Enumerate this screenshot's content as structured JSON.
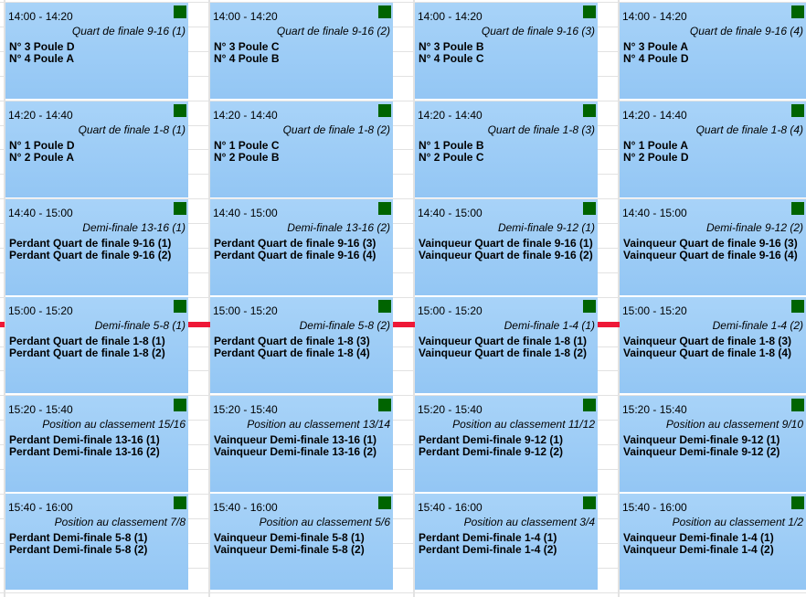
{
  "now_indicator_color": "#ee1837",
  "status_color": "#006400",
  "rows": [
    {
      "time": "14:00 - 14:20",
      "matches": [
        {
          "title": "Quart de finale 9-16 (1)",
          "teams": [
            "N° 3 Poule D",
            "N° 4 Poule A"
          ]
        },
        {
          "title": "Quart de finale 9-16 (2)",
          "teams": [
            "N° 3 Poule C",
            "N° 4 Poule B"
          ]
        },
        {
          "title": "Quart de finale 9-16 (3)",
          "teams": [
            "N° 3 Poule B",
            "N° 4 Poule C"
          ]
        },
        {
          "title": "Quart de finale 9-16 (4)",
          "teams": [
            "N° 3 Poule A",
            "N° 4 Poule D"
          ]
        }
      ]
    },
    {
      "time": "14:20 - 14:40",
      "matches": [
        {
          "title": "Quart de finale 1-8 (1)",
          "teams": [
            "N° 1 Poule D",
            "N° 2 Poule A"
          ]
        },
        {
          "title": "Quart de finale 1-8 (2)",
          "teams": [
            "N° 1 Poule C",
            "N° 2 Poule B"
          ]
        },
        {
          "title": "Quart de finale 1-8 (3)",
          "teams": [
            "N° 1 Poule B",
            "N° 2 Poule C"
          ]
        },
        {
          "title": "Quart de finale 1-8 (4)",
          "teams": [
            "N° 1 Poule A",
            "N° 2 Poule D"
          ]
        }
      ]
    },
    {
      "time": "14:40 - 15:00",
      "matches": [
        {
          "title": "Demi-finale 13-16 (1)",
          "teams": [
            "Perdant Quart de finale 9-16 (1)",
            "Perdant Quart de finale 9-16 (2)"
          ]
        },
        {
          "title": "Demi-finale 13-16 (2)",
          "teams": [
            "Perdant Quart de finale 9-16 (3)",
            "Perdant Quart de finale 9-16 (4)"
          ]
        },
        {
          "title": "Demi-finale 9-12 (1)",
          "teams": [
            "Vainqueur Quart de finale 9-16 (1)",
            "Vainqueur Quart de finale 9-16 (2)"
          ]
        },
        {
          "title": "Demi-finale 9-12 (2)",
          "teams": [
            "Vainqueur Quart de finale 9-16 (3)",
            "Vainqueur Quart de finale 9-16 (4)"
          ]
        }
      ]
    },
    {
      "time": "15:00 - 15:20",
      "matches": [
        {
          "title": "Demi-finale 5-8 (1)",
          "teams": [
            "Perdant Quart de finale 1-8 (1)",
            "Perdant Quart de finale 1-8 (2)"
          ]
        },
        {
          "title": "Demi-finale 5-8 (2)",
          "teams": [
            "Perdant Quart de finale 1-8 (3)",
            "Perdant Quart de finale 1-8 (4)"
          ]
        },
        {
          "title": "Demi-finale 1-4 (1)",
          "teams": [
            "Vainqueur Quart de finale 1-8 (1)",
            "Vainqueur Quart de finale 1-8 (2)"
          ]
        },
        {
          "title": "Demi-finale 1-4 (2)",
          "teams": [
            "Vainqueur Quart de finale 1-8 (3)",
            "Vainqueur Quart de finale 1-8 (4)"
          ]
        }
      ]
    },
    {
      "time": "15:20 - 15:40",
      "matches": [
        {
          "title": "Position au classement 15/16",
          "teams": [
            "Perdant Demi-finale 13-16 (1)",
            "Perdant Demi-finale 13-16 (2)"
          ]
        },
        {
          "title": "Position au classement 13/14",
          "teams": [
            "Vainqueur Demi-finale 13-16 (1)",
            "Vainqueur Demi-finale 13-16 (2)"
          ]
        },
        {
          "title": "Position au classement 11/12",
          "teams": [
            "Perdant Demi-finale 9-12 (1)",
            "Perdant Demi-finale 9-12 (2)"
          ]
        },
        {
          "title": "Position au classement 9/10",
          "teams": [
            "Vainqueur Demi-finale 9-12 (1)",
            "Vainqueur Demi-finale 9-12 (2)"
          ]
        }
      ]
    },
    {
      "time": "15:40 - 16:00",
      "matches": [
        {
          "title": "Position au classement 7/8",
          "teams": [
            "Perdant Demi-finale 5-8 (1)",
            "Perdant Demi-finale 5-8 (2)"
          ]
        },
        {
          "title": "Position au classement 5/6",
          "teams": [
            "Vainqueur Demi-finale 5-8 (1)",
            "Vainqueur Demi-finale 5-8 (2)"
          ]
        },
        {
          "title": "Position au classement 3/4",
          "teams": [
            "Perdant Demi-finale 1-4 (1)",
            "Perdant Demi-finale 1-4 (2)"
          ]
        },
        {
          "title": "Position au classement 1/2",
          "teams": [
            "Vainqueur Demi-finale 1-4 (1)",
            "Vainqueur Demi-finale 1-4 (2)"
          ]
        }
      ]
    }
  ]
}
